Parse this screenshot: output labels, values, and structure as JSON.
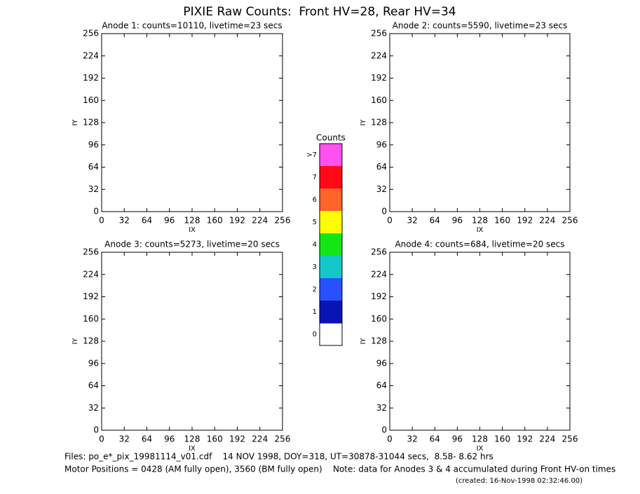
{
  "title": "PIXIE Raw Counts:  Front HV=28, Rear HV=34",
  "chart_data": [
    {
      "type": "heatmap",
      "title": "Anode 1: counts=10110, livetime=23 secs",
      "xlabel": "IX",
      "ylabel": "IY",
      "xlim": [
        0,
        256
      ],
      "ylim": [
        0,
        256
      ],
      "xticks": [
        0,
        32,
        64,
        96,
        128,
        160,
        192,
        224,
        256
      ],
      "yticks": [
        0,
        32,
        64,
        96,
        128,
        160,
        192,
        224,
        256
      ]
    },
    {
      "type": "heatmap",
      "title": "Anode 2: counts=5590, livetime=23 secs",
      "xlabel": "IX",
      "ylabel": "IY",
      "xlim": [
        0,
        256
      ],
      "ylim": [
        0,
        256
      ],
      "xticks": [
        0,
        32,
        64,
        96,
        128,
        160,
        192,
        224,
        256
      ],
      "yticks": [
        0,
        32,
        64,
        96,
        128,
        160,
        192,
        224,
        256
      ]
    },
    {
      "type": "heatmap",
      "title": "Anode 3: counts=5273, livetime=20 secs",
      "xlabel": "IX",
      "ylabel": "IY",
      "xlim": [
        0,
        256
      ],
      "ylim": [
        0,
        256
      ],
      "xticks": [
        0,
        32,
        64,
        96,
        128,
        160,
        192,
        224,
        256
      ],
      "yticks": [
        0,
        32,
        64,
        96,
        128,
        160,
        192,
        224,
        256
      ]
    },
    {
      "type": "heatmap",
      "title": "Anode 4: counts=684, livetime=20 secs",
      "xlabel": "IX",
      "ylabel": "IY",
      "xlim": [
        0,
        256
      ],
      "ylim": [
        0,
        256
      ],
      "xticks": [
        0,
        32,
        64,
        96,
        128,
        160,
        192,
        224,
        256
      ],
      "yticks": [
        0,
        32,
        64,
        96,
        128,
        160,
        192,
        224,
        256
      ]
    }
  ],
  "colorbar": {
    "title": "Counts",
    "labels": [
      "0",
      "1",
      "2",
      "3",
      "4",
      "5",
      "6",
      "7",
      ">7"
    ],
    "colors": [
      "#ffffff",
      "#0a14b4",
      "#2850ff",
      "#14c8c8",
      "#14e614",
      "#ffff00",
      "#ff6428",
      "#ff0a14",
      "#ff50f0"
    ]
  },
  "footer": {
    "files": "Files: po_e*_pix_19981114_v01.cdf    14 NOV 1998, DOY=318, UT=30878-31044 secs,  8.58- 8.62 hrs",
    "motor": "Motor Positions = 0428 (AM fully open), 3560 (BM fully open)    Note: data for Anodes 3 & 4 accumulated during Front HV-on times",
    "created": "(created: 16-Nov-1998 02:32:46.00)"
  }
}
